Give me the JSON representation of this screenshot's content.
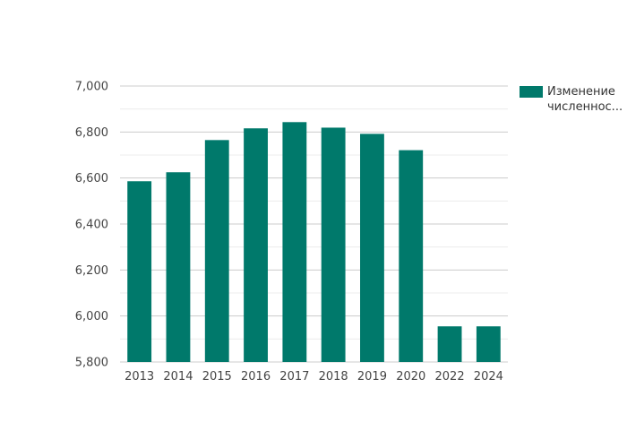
{
  "chart_data": {
    "type": "bar",
    "categories": [
      "2013",
      "2014",
      "2015",
      "2016",
      "2017",
      "2018",
      "2019",
      "2020",
      "2022",
      "2024"
    ],
    "series": [
      {
        "name": "Изменение численнос...",
        "values": [
          6586,
          6625,
          6765,
          6816,
          6843,
          6819,
          6792,
          6721,
          5955,
          5955
        ]
      }
    ],
    "y_ticks": [
      "5,800",
      "6,000",
      "6,200",
      "6,400",
      "6,600",
      "6,800",
      "7,000"
    ],
    "ylim": [
      5800,
      7000
    ],
    "grid": true,
    "legend_position": "right",
    "colors": {
      "bar": "#00796b",
      "grid_major": "#cccccc",
      "grid_minor": "#ececec"
    }
  }
}
